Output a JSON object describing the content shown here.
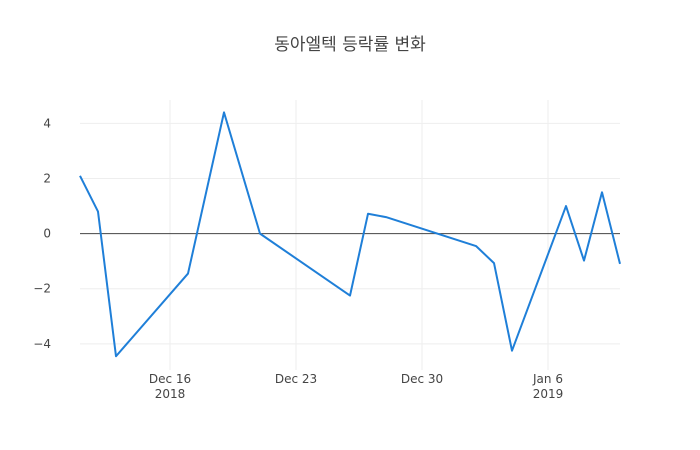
{
  "chart_data": {
    "type": "line",
    "title": "동아엘텍 등락률 변화",
    "xlabel": "",
    "ylabel": "",
    "x_start": "2018-12-11",
    "x_end": "2019-01-10",
    "ylim": [
      -4.95,
      4.85
    ],
    "yticks": [
      4,
      2,
      0,
      -2,
      -4
    ],
    "ytick_labels": [
      "4",
      "2",
      "0",
      "−2",
      "−4"
    ],
    "xticks": [
      {
        "date": "2018-12-16",
        "label": "Dec 16",
        "sublabel": "2018"
      },
      {
        "date": "2018-12-23",
        "label": "Dec 23",
        "sublabel": ""
      },
      {
        "date": "2018-12-30",
        "label": "Dec 30",
        "sublabel": ""
      },
      {
        "date": "2019-01-06",
        "label": "Jan 6",
        "sublabel": "2019"
      }
    ],
    "grid": true,
    "line_color": "#1f7fd8",
    "series": [
      {
        "x": [
          "2018-12-11",
          "2018-12-12",
          "2018-12-13",
          "2018-12-17",
          "2018-12-19",
          "2018-12-21",
          "2018-12-26",
          "2018-12-27",
          "2018-12-28",
          "2019-01-02",
          "2019-01-03",
          "2019-01-04",
          "2019-01-07",
          "2019-01-08",
          "2019-01-09",
          "2019-01-10"
        ],
        "values": [
          2.1,
          0.8,
          -4.45,
          -1.45,
          4.4,
          0.0,
          -2.25,
          0.72,
          0.6,
          -0.45,
          -1.07,
          -4.25,
          1.0,
          -0.98,
          1.5,
          -1.1
        ]
      }
    ]
  }
}
